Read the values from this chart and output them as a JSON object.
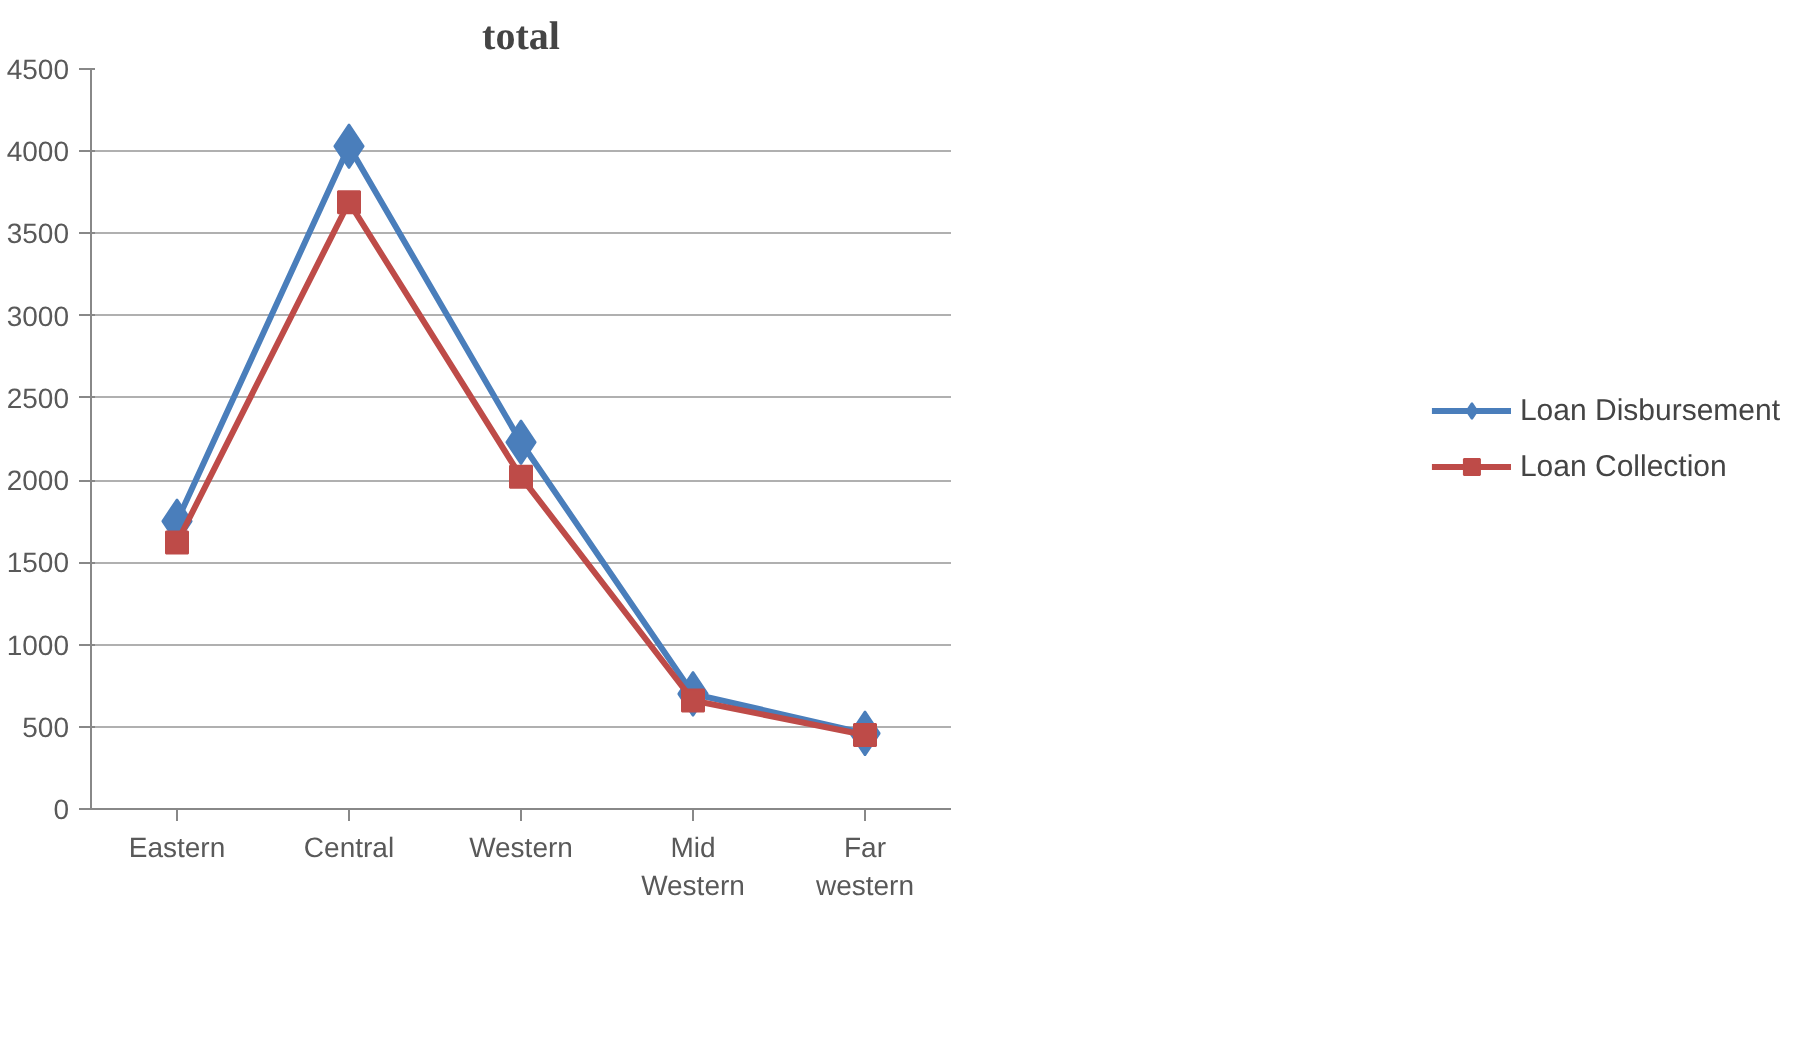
{
  "chart_data": {
    "type": "line",
    "title": "total",
    "categories": [
      "Eastern",
      "Central",
      "Western",
      "Mid Western",
      "Far western"
    ],
    "series": [
      {
        "name": "Loan Disbursement",
        "color": "#4a7ebb",
        "marker": "diamond",
        "values": [
          1750,
          4030,
          2230,
          700,
          460
        ]
      },
      {
        "name": "Loan Collection",
        "color": "#be4b48",
        "marker": "square",
        "values": [
          1620,
          3690,
          2020,
          660,
          450
        ]
      }
    ],
    "ylim": [
      0,
      4500
    ],
    "yticks": [
      0,
      500,
      1000,
      1500,
      2000,
      2500,
      3000,
      3500,
      4000,
      4500
    ],
    "grid": "y",
    "legend": "right"
  }
}
